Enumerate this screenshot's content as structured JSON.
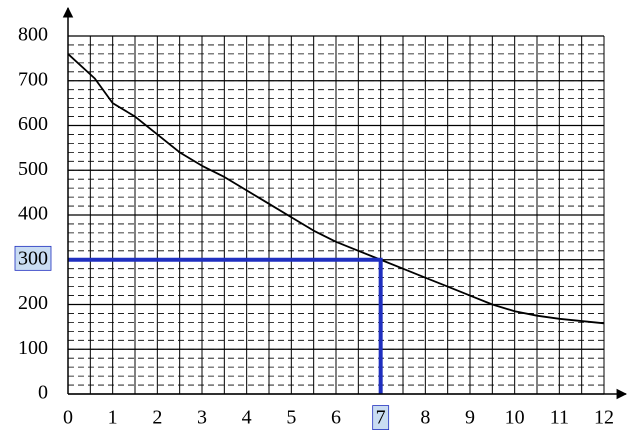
{
  "chart_data": {
    "type": "line",
    "x": [
      0,
      0.6,
      1,
      1.5,
      2,
      2.5,
      3,
      3.5,
      4,
      4.5,
      5,
      5.5,
      6,
      6.5,
      7,
      7.5,
      8,
      8.5,
      9,
      9.5,
      10,
      10.5,
      11,
      11.5,
      12
    ],
    "series": [
      {
        "color": "#000000",
        "values": [
          760,
          705,
          650,
          620,
          580,
          540,
          510,
          485,
          455,
          425,
          395,
          365,
          340,
          320,
          300,
          280,
          260,
          240,
          220,
          200,
          185,
          175,
          168,
          163,
          158
        ]
      }
    ],
    "xlim": [
      0,
      12
    ],
    "ylim": [
      0,
      800
    ],
    "xticks": [
      0,
      1,
      2,
      3,
      4,
      5,
      6,
      7,
      8,
      9,
      10,
      11,
      12
    ],
    "yticks": [
      0,
      100,
      200,
      300,
      400,
      500,
      600,
      700,
      800
    ],
    "grid": {
      "x_step": 0.5,
      "y_step": 100,
      "y_minor_step": 20
    },
    "highlight": {
      "x": 7,
      "y": 300,
      "color": "#1f2fbf",
      "label_fill": "#c9dcf2"
    }
  }
}
